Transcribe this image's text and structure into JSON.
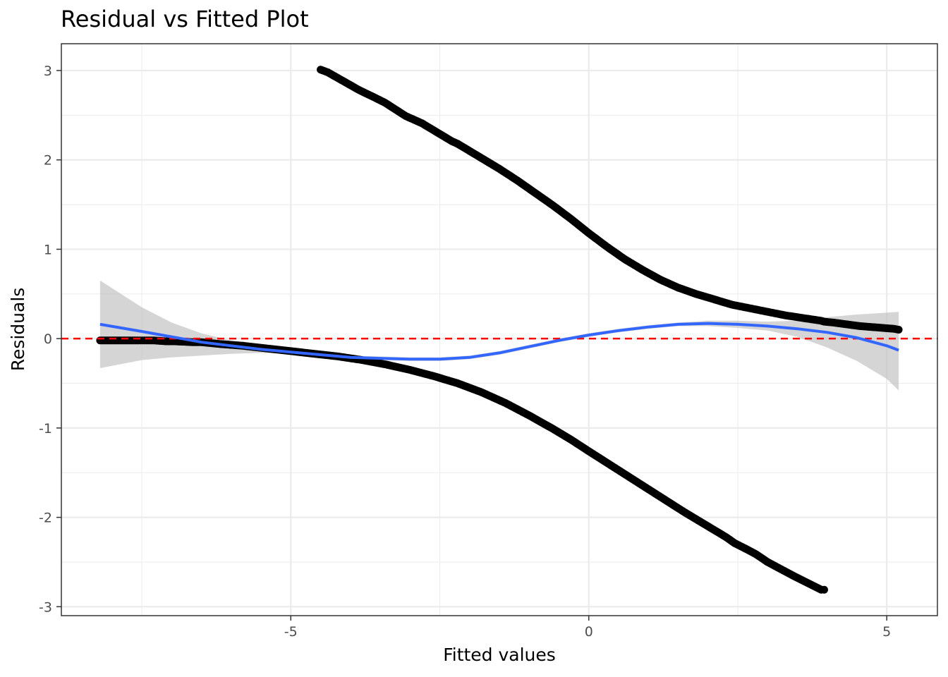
{
  "chart_data": {
    "type": "scatter",
    "title": "Residual vs Fitted Plot",
    "xlabel": "Fitted values",
    "ylabel": "Residuals",
    "xlim": [
      -8.85,
      5.85
    ],
    "ylim": [
      -3.1,
      3.3
    ],
    "x_ticks": [
      -5,
      0,
      5
    ],
    "x_tick_labels": [
      "-5",
      "0",
      "5"
    ],
    "y_ticks": [
      -3,
      -2,
      -1,
      0,
      1,
      2,
      3
    ],
    "y_tick_labels": [
      "-3",
      "-2",
      "-1",
      "0",
      "1",
      "2",
      "3"
    ],
    "grid": true,
    "legend": "none",
    "colors": {
      "points": "#000000",
      "smooth": "#3366ff",
      "band": "#bfbfbf",
      "reference": "#ff0000",
      "grid": "#ebebeb"
    },
    "reference_line": {
      "y": 0,
      "style": "dashed"
    },
    "upper_branch_points": [
      [
        -4.5,
        3.01
      ],
      [
        -4.38,
        2.98
      ],
      [
        -3.85,
        2.78
      ],
      [
        -3.6,
        2.7
      ],
      [
        -3.42,
        2.64
      ],
      [
        -3.07,
        2.49
      ],
      [
        -2.9,
        2.44
      ],
      [
        -2.8,
        2.41
      ],
      [
        -2.7,
        2.37
      ],
      [
        -2.55,
        2.31
      ],
      [
        -2.45,
        2.27
      ],
      [
        -2.3,
        2.21
      ],
      [
        -2.2,
        2.18
      ],
      [
        -2.1,
        2.14
      ],
      [
        -2.0,
        2.1
      ],
      [
        -1.8,
        2.02
      ],
      [
        -1.5,
        1.9
      ],
      [
        -1.2,
        1.77
      ],
      [
        -0.9,
        1.63
      ],
      [
        -0.6,
        1.49
      ],
      [
        -0.3,
        1.34
      ],
      [
        0.0,
        1.18
      ],
      [
        0.3,
        1.03
      ],
      [
        0.6,
        0.89
      ],
      [
        0.9,
        0.77
      ],
      [
        1.2,
        0.66
      ],
      [
        1.5,
        0.57
      ],
      [
        1.8,
        0.5
      ],
      [
        2.1,
        0.44
      ],
      [
        2.4,
        0.38
      ],
      [
        2.7,
        0.34
      ],
      [
        3.0,
        0.3
      ],
      [
        3.3,
        0.26
      ],
      [
        3.5,
        0.24
      ],
      [
        3.7,
        0.22
      ],
      [
        3.8,
        0.21
      ],
      [
        3.9,
        0.2
      ],
      [
        3.95,
        0.19
      ],
      [
        4.1,
        0.18
      ],
      [
        4.55,
        0.14
      ],
      [
        5.12,
        0.11
      ],
      [
        5.2,
        0.1
      ]
    ],
    "lower_branch_points": [
      [
        -8.2,
        -0.02
      ],
      [
        -7.85,
        -0.02
      ],
      [
        -7.55,
        -0.02
      ],
      [
        -7.45,
        -0.02
      ],
      [
        -7.3,
        -0.02
      ],
      [
        -7.1,
        -0.03
      ],
      [
        -6.95,
        -0.03
      ],
      [
        -6.65,
        -0.04
      ],
      [
        -6.5,
        -0.04
      ],
      [
        -6.35,
        -0.05
      ],
      [
        -6.2,
        -0.06
      ],
      [
        -5.8,
        -0.08
      ],
      [
        -5.4,
        -0.11
      ],
      [
        -5.0,
        -0.14
      ],
      [
        -4.6,
        -0.17
      ],
      [
        -4.2,
        -0.2
      ],
      [
        -3.8,
        -0.24
      ],
      [
        -3.4,
        -0.29
      ],
      [
        -3.0,
        -0.35
      ],
      [
        -2.6,
        -0.42
      ],
      [
        -2.2,
        -0.5
      ],
      [
        -1.8,
        -0.6
      ],
      [
        -1.4,
        -0.72
      ],
      [
        -1.0,
        -0.86
      ],
      [
        -0.6,
        -1.01
      ],
      [
        -0.3,
        -1.13
      ],
      [
        0.0,
        -1.26
      ],
      [
        0.4,
        -1.43
      ],
      [
        0.8,
        -1.6
      ],
      [
        1.2,
        -1.77
      ],
      [
        1.6,
        -1.94
      ],
      [
        1.9,
        -2.06
      ],
      [
        2.1,
        -2.14
      ],
      [
        2.3,
        -2.22
      ],
      [
        2.45,
        -2.29
      ],
      [
        2.6,
        -2.34
      ],
      [
        2.8,
        -2.41
      ],
      [
        3.0,
        -2.5
      ],
      [
        3.45,
        -2.66
      ],
      [
        3.9,
        -2.81
      ],
      [
        3.95,
        -2.81
      ]
    ],
    "smooth_line": [
      [
        -8.2,
        0.16
      ],
      [
        -7.5,
        0.08
      ],
      [
        -7.0,
        0.02
      ],
      [
        -6.5,
        -0.04
      ],
      [
        -6.0,
        -0.08
      ],
      [
        -5.5,
        -0.12
      ],
      [
        -5.0,
        -0.15
      ],
      [
        -4.5,
        -0.18
      ],
      [
        -4.0,
        -0.21
      ],
      [
        -3.5,
        -0.22
      ],
      [
        -3.0,
        -0.23
      ],
      [
        -2.5,
        -0.23
      ],
      [
        -2.0,
        -0.21
      ],
      [
        -1.5,
        -0.16
      ],
      [
        -1.0,
        -0.09
      ],
      [
        -0.5,
        -0.02
      ],
      [
        0.0,
        0.04
      ],
      [
        0.5,
        0.09
      ],
      [
        1.0,
        0.13
      ],
      [
        1.5,
        0.16
      ],
      [
        2.0,
        0.17
      ],
      [
        2.5,
        0.16
      ],
      [
        3.0,
        0.14
      ],
      [
        3.5,
        0.11
      ],
      [
        4.0,
        0.07
      ],
      [
        4.5,
        0.01
      ],
      [
        5.0,
        -0.08
      ],
      [
        5.2,
        -0.13
      ]
    ],
    "confidence_band_upper": [
      [
        -8.2,
        0.65
      ],
      [
        -7.5,
        0.35
      ],
      [
        -7.0,
        0.18
      ],
      [
        -6.5,
        0.06
      ],
      [
        -6.0,
        -0.02
      ],
      [
        -5.5,
        -0.08
      ],
      [
        -5.0,
        -0.13
      ],
      [
        -4.5,
        -0.16
      ],
      [
        -4.0,
        -0.19
      ],
      [
        -3.5,
        -0.2
      ],
      [
        -3.0,
        -0.21
      ],
      [
        -2.5,
        -0.21
      ],
      [
        -2.0,
        -0.19
      ],
      [
        -1.5,
        -0.14
      ],
      [
        -1.0,
        -0.07
      ],
      [
        -0.5,
        0.0
      ],
      [
        0.0,
        0.06
      ],
      [
        0.5,
        0.11
      ],
      [
        1.0,
        0.15
      ],
      [
        1.5,
        0.18
      ],
      [
        2.0,
        0.2
      ],
      [
        2.5,
        0.2
      ],
      [
        3.0,
        0.19
      ],
      [
        3.5,
        0.2
      ],
      [
        4.0,
        0.24
      ],
      [
        4.5,
        0.27
      ],
      [
        5.0,
        0.29
      ],
      [
        5.2,
        0.3
      ]
    ],
    "confidence_band_lower": [
      [
        -8.2,
        -0.33
      ],
      [
        -7.5,
        -0.24
      ],
      [
        -7.0,
        -0.21
      ],
      [
        -6.5,
        -0.19
      ],
      [
        -6.0,
        -0.17
      ],
      [
        -5.5,
        -0.16
      ],
      [
        -5.0,
        -0.17
      ],
      [
        -4.5,
        -0.2
      ],
      [
        -4.0,
        -0.23
      ],
      [
        -3.5,
        -0.24
      ],
      [
        -3.0,
        -0.25
      ],
      [
        -2.5,
        -0.25
      ],
      [
        -2.0,
        -0.23
      ],
      [
        -1.5,
        -0.18
      ],
      [
        -1.0,
        -0.11
      ],
      [
        -0.5,
        -0.04
      ],
      [
        0.0,
        0.02
      ],
      [
        0.5,
        0.07
      ],
      [
        1.0,
        0.11
      ],
      [
        1.5,
        0.14
      ],
      [
        2.0,
        0.14
      ],
      [
        2.5,
        0.12
      ],
      [
        3.0,
        0.09
      ],
      [
        3.5,
        0.02
      ],
      [
        4.0,
        -0.1
      ],
      [
        4.5,
        -0.25
      ],
      [
        5.0,
        -0.45
      ],
      [
        5.2,
        -0.58
      ]
    ]
  }
}
